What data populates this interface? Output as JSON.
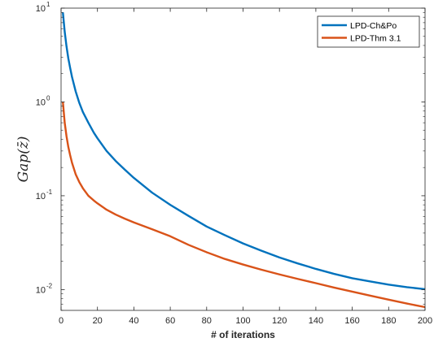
{
  "chart_data": {
    "type": "line",
    "title": "",
    "xlabel": "# of iterations",
    "ylabel": "Gap(z̄)",
    "xlim": [
      0,
      200
    ],
    "ylim": [
      0.006,
      10
    ],
    "yscale": "log",
    "grid": false,
    "legend_position": "top-right",
    "x_ticks": [
      "0",
      "20",
      "40",
      "60",
      "80",
      "100",
      "120",
      "140",
      "160",
      "180",
      "200"
    ],
    "y_ticks": [
      {
        "value": 0.01,
        "base": "10",
        "exp": "-2"
      },
      {
        "value": 0.1,
        "base": "10",
        "exp": "-1"
      },
      {
        "value": 1,
        "base": "10",
        "exp": "0"
      },
      {
        "value": 10,
        "base": "10",
        "exp": "1"
      }
    ],
    "series": [
      {
        "name": "LPD-Ch&Po",
        "color": "#0072BD",
        "x": [
          1,
          2,
          3,
          4,
          5,
          6,
          8,
          10,
          12,
          15,
          18,
          20,
          25,
          30,
          35,
          40,
          50,
          60,
          70,
          80,
          90,
          100,
          110,
          120,
          130,
          140,
          150,
          160,
          170,
          180,
          190,
          200
        ],
        "y": [
          9.0,
          5.6,
          3.9,
          2.9,
          2.3,
          1.85,
          1.3,
          0.98,
          0.78,
          0.6,
          0.47,
          0.41,
          0.3,
          0.235,
          0.19,
          0.155,
          0.108,
          0.08,
          0.061,
          0.047,
          0.038,
          0.031,
          0.026,
          0.022,
          0.019,
          0.0166,
          0.0147,
          0.0132,
          0.0122,
          0.0113,
          0.0106,
          0.0101
        ]
      },
      {
        "name": "LPD-Thm 3.1",
        "color": "#D95319",
        "x": [
          1,
          2,
          3,
          4,
          5,
          6,
          8,
          10,
          12,
          15,
          18,
          20,
          25,
          30,
          35,
          40,
          50,
          60,
          70,
          80,
          90,
          100,
          110,
          120,
          130,
          140,
          150,
          160,
          170,
          180,
          190,
          200
        ],
        "y": [
          1.0,
          0.6,
          0.43,
          0.33,
          0.27,
          0.225,
          0.17,
          0.14,
          0.12,
          0.1,
          0.089,
          0.083,
          0.071,
          0.063,
          0.057,
          0.052,
          0.044,
          0.037,
          0.03,
          0.025,
          0.0212,
          0.0185,
          0.0163,
          0.0145,
          0.013,
          0.0117,
          0.0105,
          0.0095,
          0.0086,
          0.0078,
          0.0071,
          0.0065
        ]
      }
    ]
  }
}
